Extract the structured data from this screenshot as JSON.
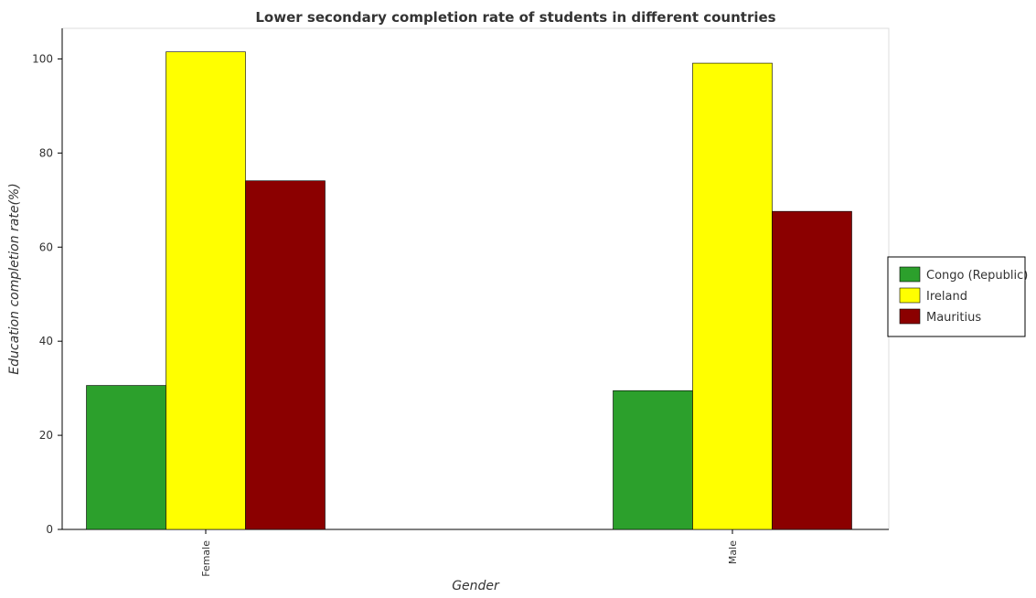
{
  "chart_data": {
    "type": "bar",
    "title": "Lower secondary completion rate of students in different countries",
    "xlabel": "Gender",
    "ylabel": "Education completion rate(%)",
    "categories": [
      "Female",
      "Male"
    ],
    "ylim": [
      0,
      106.5
    ],
    "yticks": [
      0,
      20,
      40,
      60,
      80,
      100
    ],
    "grid": false,
    "legend_position": "right",
    "series": [
      {
        "name": "Congo (Republic)",
        "color": "#2ca02c",
        "values": [
          30.6,
          29.5
        ]
      },
      {
        "name": "Ireland",
        "color": "#ffff00",
        "values": [
          101.5,
          99.1
        ]
      },
      {
        "name": "Mauritius",
        "color": "#8b0000",
        "values": [
          74.1,
          67.6
        ]
      }
    ]
  }
}
